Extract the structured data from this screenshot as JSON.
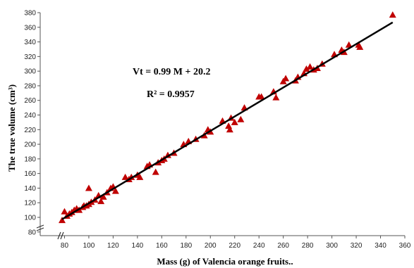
{
  "chart_data": {
    "type": "scatter",
    "xlabel": "Mass (g) of Valencia orange fruits..",
    "ylabel": "The true volume (cm³)",
    "xlim": [
      60,
      360
    ],
    "ylim": [
      75,
      380
    ],
    "x_ticks": [
      "80",
      "100",
      "120",
      "140",
      "160",
      "180",
      "200",
      "220",
      "240",
      "260",
      "280",
      "300",
      "320",
      "340",
      "360"
    ],
    "y_ticks": [
      "80",
      "100",
      "120",
      "140",
      "160",
      "180",
      "200",
      "220",
      "240",
      "260",
      "280",
      "300",
      "320",
      "340",
      "360",
      "380"
    ],
    "axis_break": true,
    "grid": false,
    "marker_color": "#c00000",
    "line_color": "#000000",
    "equation": "Vt = 0.99 M + 20.2",
    "r_squared": "R² = 0.9957",
    "fit": {
      "slope": 0.99,
      "intercept": 20.2,
      "x_range": [
        78,
        350
      ]
    },
    "points": [
      [
        78,
        96
      ],
      [
        80,
        108
      ],
      [
        82,
        102
      ],
      [
        84,
        105
      ],
      [
        86,
        107
      ],
      [
        88,
        110
      ],
      [
        90,
        112
      ],
      [
        92,
        110
      ],
      [
        95,
        114
      ],
      [
        96,
        116
      ],
      [
        98,
        116
      ],
      [
        100,
        118
      ],
      [
        100,
        140
      ],
      [
        102,
        121
      ],
      [
        105,
        124
      ],
      [
        108,
        130
      ],
      [
        110,
        122
      ],
      [
        112,
        128
      ],
      [
        115,
        134
      ],
      [
        118,
        140
      ],
      [
        120,
        142
      ],
      [
        122,
        136
      ],
      [
        130,
        155
      ],
      [
        133,
        152
      ],
      [
        135,
        155
      ],
      [
        140,
        158
      ],
      [
        142,
        155
      ],
      [
        148,
        170
      ],
      [
        150,
        172
      ],
      [
        155,
        162
      ],
      [
        157,
        175
      ],
      [
        160,
        178
      ],
      [
        162,
        180
      ],
      [
        165,
        185
      ],
      [
        170,
        188
      ],
      [
        178,
        200
      ],
      [
        182,
        204
      ],
      [
        188,
        207
      ],
      [
        195,
        212
      ],
      [
        198,
        220
      ],
      [
        200,
        217
      ],
      [
        210,
        232
      ],
      [
        215,
        225
      ],
      [
        216,
        220
      ],
      [
        217,
        236
      ],
      [
        220,
        230
      ],
      [
        225,
        234
      ],
      [
        228,
        250
      ],
      [
        240,
        265
      ],
      [
        242,
        265
      ],
      [
        252,
        272
      ],
      [
        254,
        264
      ],
      [
        260,
        286
      ],
      [
        262,
        290
      ],
      [
        270,
        287
      ],
      [
        272,
        292
      ],
      [
        277,
        297
      ],
      [
        279,
        303
      ],
      [
        282,
        306
      ],
      [
        285,
        302
      ],
      [
        288,
        304
      ],
      [
        292,
        310
      ],
      [
        302,
        323
      ],
      [
        308,
        329
      ],
      [
        310,
        326
      ],
      [
        314,
        336
      ],
      [
        322,
        336
      ],
      [
        323,
        333
      ],
      [
        350,
        377
      ]
    ]
  }
}
